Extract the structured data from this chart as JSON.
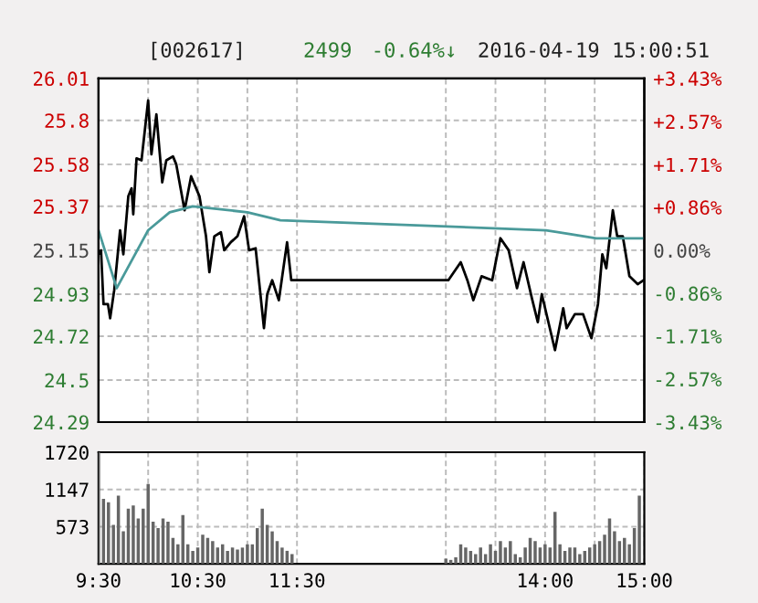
{
  "chart_data": [
    {
      "type": "line",
      "title": "[002617]",
      "subtitle": "2499",
      "annotations": [
        "-0.64%↓",
        "2016-04-19 15:00:51"
      ],
      "series": [
        {
          "color": "#000000",
          "x": [
            9.5,
            9.525,
            9.55,
            9.595,
            9.617,
            9.658,
            9.717,
            9.75,
            9.8,
            9.833,
            9.85,
            9.883,
            9.933,
            10,
            10.033,
            10.083,
            10.142,
            10.183,
            10.25,
            10.283,
            10.367,
            10.433,
            10.517,
            10.583,
            10.617,
            10.667,
            10.733,
            10.767,
            10.833,
            10.9,
            10.967,
            11.017,
            11.083,
            11.167,
            11.2,
            11.25,
            11.317,
            11.4,
            11.442,
            13.025,
            13.15,
            13.217,
            13.277,
            13.36,
            13.467,
            13.55,
            13.633,
            13.717,
            13.783,
            13.867,
            13.927,
            13.967,
            14.1,
            14.183,
            14.217,
            14.3,
            14.383,
            14.467,
            14.533,
            14.577,
            14.617,
            14.683,
            14.727,
            14.783,
            14.85,
            14.933,
            14.993
          ],
          "values": [
            25.13,
            25.15,
            24.88,
            24.88,
            24.81,
            24.95,
            25.25,
            25.13,
            25.42,
            25.46,
            25.33,
            25.61,
            25.6,
            25.9,
            25.63,
            25.83,
            25.49,
            25.6,
            25.62,
            25.58,
            25.35,
            25.52,
            25.42,
            25.22,
            25.04,
            25.22,
            25.24,
            25.15,
            25.19,
            25.22,
            25.32,
            25.15,
            25.16,
            24.76,
            24.93,
            25.0,
            24.9,
            25.19,
            25.0,
            25.0,
            25.09,
            25.0,
            24.9,
            25.02,
            25.0,
            25.21,
            25.15,
            24.96,
            25.09,
            24.91,
            24.79,
            24.93,
            24.65,
            24.86,
            24.76,
            24.83,
            24.83,
            24.71,
            24.88,
            25.13,
            25.06,
            25.35,
            25.22,
            25.22,
            25.02,
            24.98,
            25.0
          ]
        },
        {
          "color": "#4a9a9a",
          "x": [
            9.5,
            9.683,
            10,
            10.217,
            10.45,
            11,
            11.333,
            14.01,
            14.517,
            15
          ],
          "values": [
            25.25,
            24.96,
            25.25,
            25.34,
            25.37,
            25.34,
            25.3,
            25.25,
            25.21,
            25.21
          ]
        }
      ],
      "xlim": [
        9.5,
        15
      ],
      "xticks": [
        {
          "value": 9.5,
          "label": null
        },
        {
          "value": 10,
          "label": null
        },
        {
          "value": 10.5,
          "label": null
        },
        {
          "value": 11,
          "label": null
        },
        {
          "value": 11.5,
          "label": null
        },
        {
          "value": 13,
          "label": null
        },
        {
          "value": 13.5,
          "label": null
        },
        {
          "value": 14,
          "label": null
        },
        {
          "value": 14.5,
          "label": null
        },
        {
          "value": 15,
          "label": null
        }
      ],
      "ylim": [
        24.29,
        26.01
      ],
      "yticks": [
        24.29,
        24.5,
        24.72,
        24.93,
        25.15,
        25.37,
        25.58,
        25.8,
        26.01
      ],
      "y2lim": [
        -3.43,
        3.43
      ],
      "y2ticks": [
        {
          "value": -3.43,
          "label": "-3.43%"
        },
        {
          "value": -2.57,
          "label": "-2.57%"
        },
        {
          "value": -1.71,
          "label": "-1.71%"
        },
        {
          "value": -0.86,
          "label": "-0.86%"
        },
        {
          "value": 0,
          "label": "0.00%"
        },
        {
          "value": 0.86,
          "label": "+0.86%"
        },
        {
          "value": 1.71,
          "label": "+1.71%"
        },
        {
          "value": 2.57,
          "label": "+2.57%"
        },
        {
          "value": 3.43,
          "label": "+3.43%"
        }
      ],
      "grid": true,
      "tick_labels": "y"
    },
    {
      "type": "bar",
      "x": [
        9.5,
        9.55,
        9.6,
        9.65,
        9.7,
        9.75,
        9.8,
        9.85,
        9.9,
        9.95,
        10,
        10.05,
        10.1,
        10.15,
        10.2,
        10.25,
        10.3,
        10.35,
        10.4,
        10.45,
        10.5,
        10.55,
        10.6,
        10.65,
        10.7,
        10.75,
        10.8,
        10.85,
        10.9,
        10.95,
        11,
        11.05,
        11.1,
        11.15,
        11.2,
        11.25,
        11.3,
        11.35,
        11.4,
        11.45,
        13,
        13.05,
        13.1,
        13.15,
        13.2,
        13.25,
        13.3,
        13.35,
        13.4,
        13.45,
        13.5,
        13.55,
        13.6,
        13.65,
        13.7,
        13.75,
        13.8,
        13.85,
        13.9,
        13.95,
        14,
        14.05,
        14.1,
        14.15,
        14.2,
        14.25,
        14.3,
        14.35,
        14.4,
        14.45,
        14.5,
        14.55,
        14.6,
        14.65,
        14.7,
        14.75,
        14.8,
        14.85,
        14.9,
        14.95
      ],
      "values": [
        1720,
        1000,
        950,
        600,
        1050,
        500,
        850,
        900,
        700,
        850,
        1230,
        650,
        550,
        700,
        650,
        400,
        300,
        750,
        300,
        200,
        250,
        450,
        400,
        350,
        250,
        300,
        200,
        250,
        220,
        250,
        300,
        300,
        550,
        850,
        600,
        500,
        350,
        250,
        200,
        150,
        80,
        60,
        100,
        300,
        250,
        200,
        150,
        250,
        150,
        300,
        200,
        350,
        250,
        350,
        150,
        100,
        250,
        400,
        350,
        250,
        300,
        250,
        800,
        300,
        200,
        250,
        250,
        150,
        200,
        250,
        300,
        350,
        450,
        700,
        500,
        350,
        400,
        300,
        550,
        1050
      ],
      "color": "#666666",
      "xlim": [
        9.5,
        15
      ],
      "xticks": [
        {
          "value": 9.5,
          "label": "9:30"
        },
        {
          "value": 10,
          "label": null
        },
        {
          "value": 10.5,
          "label": "10:30"
        },
        {
          "value": 11,
          "label": null
        },
        {
          "value": 11.5,
          "label": "11:30"
        },
        {
          "value": 13,
          "label": null
        },
        {
          "value": 13.5,
          "label": null
        },
        {
          "value": 14,
          "label": "14:00"
        },
        {
          "value": 14.5,
          "label": null
        },
        {
          "value": 15,
          "label": "15:00"
        }
      ],
      "ylim": [
        0,
        1720
      ],
      "yticks": [
        573,
        1147,
        1720
      ],
      "grid": true
    }
  ]
}
